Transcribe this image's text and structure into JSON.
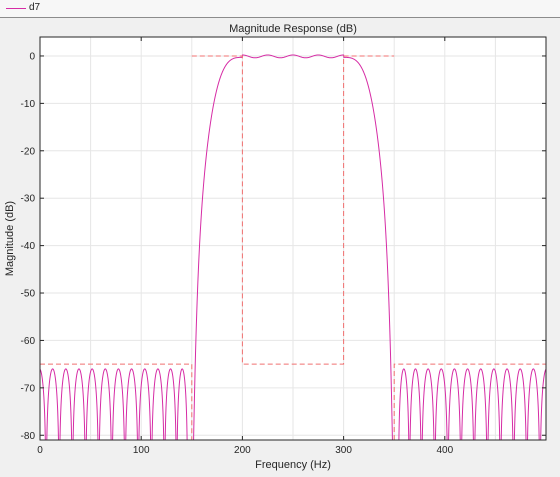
{
  "legend": {
    "label": "d7",
    "color": "#d62ca5"
  },
  "chart_data": {
    "type": "line",
    "title": "Magnitude Response (dB)",
    "xlabel": "Frequency (Hz)",
    "ylabel": "Magnitude (dB)",
    "xlim": [
      0,
      500
    ],
    "ylim": [
      -81,
      4
    ],
    "xticks": [
      0,
      100,
      200,
      300,
      400
    ],
    "yticks": [
      0,
      -10,
      -20,
      -30,
      -40,
      -50,
      -60,
      -70,
      -80
    ],
    "grid": true,
    "series": [
      {
        "name": "d7",
        "color": "#d62ca5",
        "style": "solid",
        "passband_hz": [
          200,
          300
        ],
        "stopband_edges_hz": [
          150,
          350
        ],
        "passband_ripple_db": 0.3,
        "sidelobe_peak_db": -66,
        "sidelobe_nulls_hz": [
          6,
          19,
          32,
          45,
          58,
          71,
          84,
          97,
          110,
          123,
          135,
          146,
          354,
          365,
          377,
          390,
          403,
          416,
          429,
          442,
          455,
          468,
          481,
          494
        ]
      },
      {
        "name": "",
        "color": "#f07070",
        "style": "dashed",
        "polylines": [
          [
            [
              0,
              -65
            ],
            [
              150,
              -65
            ],
            [
              150,
              -81
            ]
          ],
          [
            [
              150,
              0
            ],
            [
              200,
              0
            ],
            [
              200,
              -65
            ],
            [
              300,
              -65
            ],
            [
              300,
              0
            ],
            [
              350,
              0
            ]
          ],
          [
            [
              350,
              -81
            ],
            [
              350,
              -65
            ],
            [
              500,
              -65
            ]
          ]
        ]
      }
    ]
  }
}
